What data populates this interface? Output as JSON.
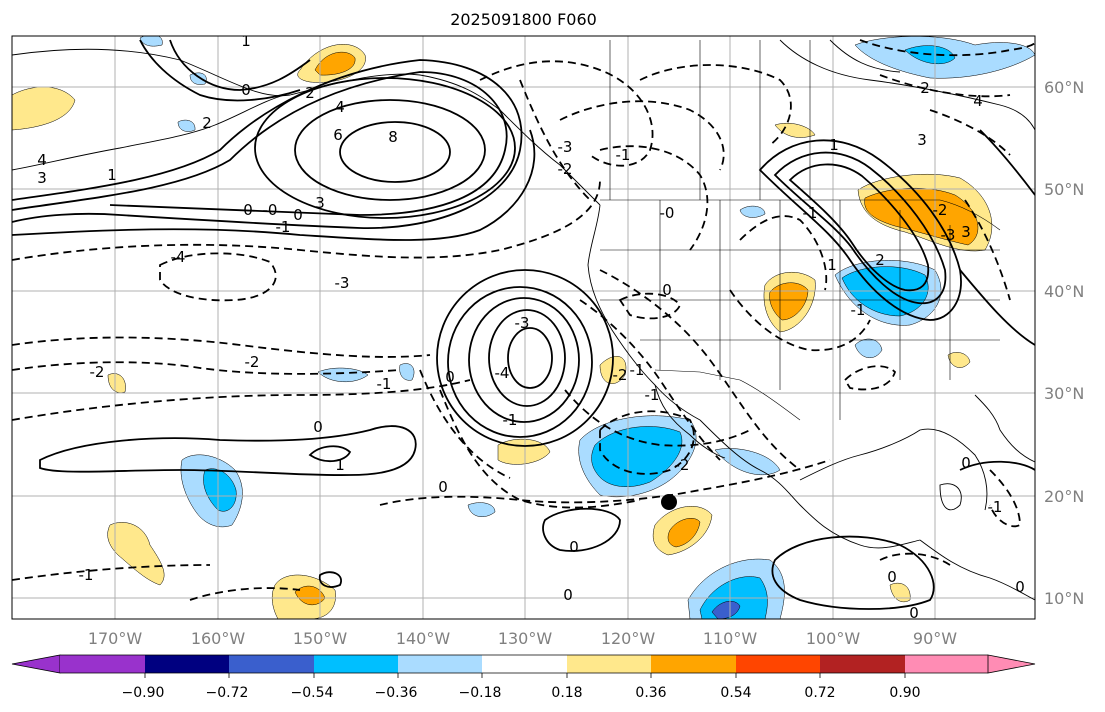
{
  "title": "2025091800 F060",
  "map": {
    "lon_range": [
      -180,
      -80
    ],
    "lat_range": [
      8,
      65
    ],
    "lon_ticks": [
      "170°W",
      "160°W",
      "150°W",
      "140°W",
      "130°W",
      "120°W",
      "110°W",
      "100°W",
      "90°W"
    ],
    "lat_ticks": [
      "60°N",
      "50°N",
      "40°N",
      "30°N",
      "20°N",
      "10°N"
    ],
    "marker": {
      "label": "storm position dot",
      "lon": -115.8,
      "lat": 19.3
    }
  },
  "contour_labels": [
    "1",
    "0",
    "0",
    "2",
    "4",
    "6",
    "8",
    "3",
    "2",
    "0",
    "-1",
    "-0",
    "1",
    "4",
    "3",
    "-2",
    "-2",
    "-1",
    "-3",
    "-4",
    "-3",
    "-2",
    "-1",
    "0",
    "-3",
    "-4",
    "-1",
    "0",
    "1",
    "0",
    "-1",
    "0",
    "-2",
    "-1",
    "-2",
    "0",
    "-1",
    "0",
    "3",
    "2",
    "1",
    "-1",
    "-1",
    "2",
    "1",
    "-2",
    "-3",
    "3",
    "4",
    "0",
    "0",
    "0",
    "-1",
    "0",
    "-0"
  ],
  "colorbar": {
    "ticks": [
      "−0.90",
      "−0.72",
      "−0.54",
      "−0.36",
      "−0.18",
      "0.18",
      "0.36",
      "0.54",
      "0.72",
      "0.90"
    ],
    "colors": {
      "below": "#9932cc",
      "bins": [
        "#000080",
        "#3a5fcd",
        "#00bfff",
        "#aadcff",
        "#ffffff",
        "#ffe88c",
        "#ffa500",
        "#ff4500",
        "#b22222"
      ],
      "above": "#ff8cb4"
    }
  }
}
